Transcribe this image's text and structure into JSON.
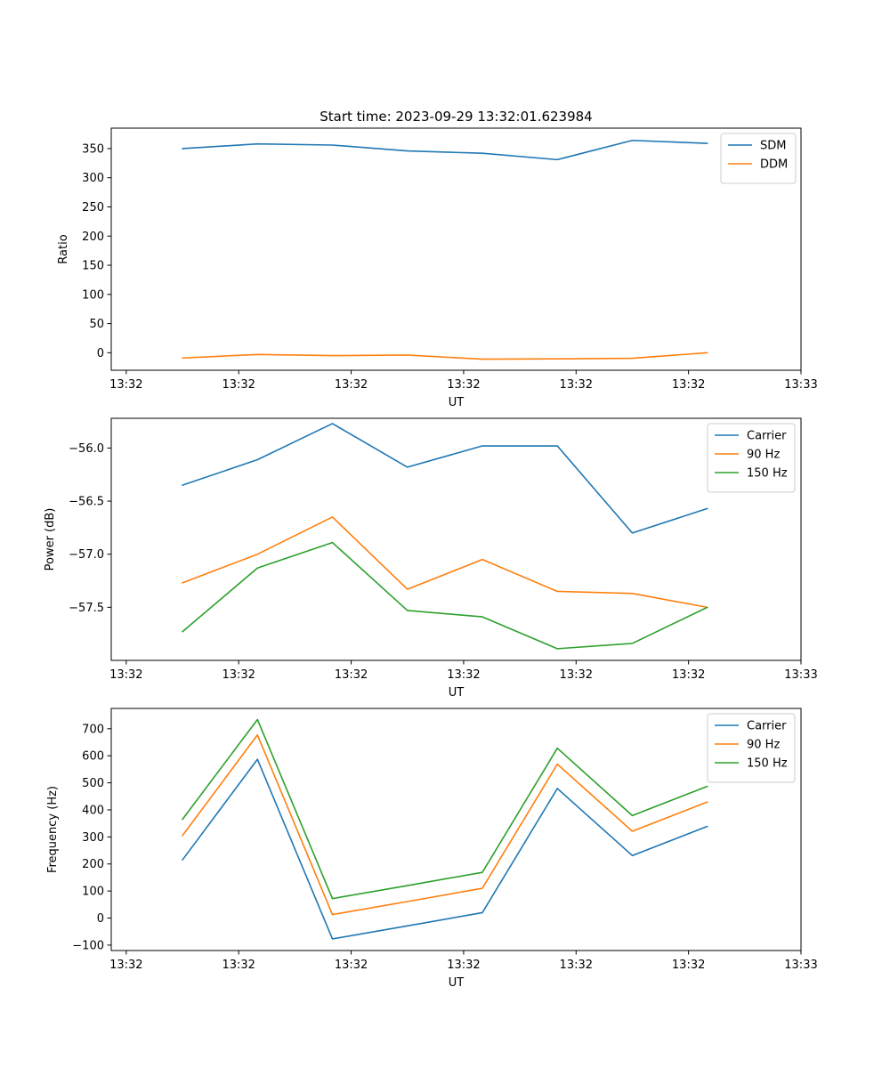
{
  "figure_title": "Start time: 2023-09-29 13:32:01.623984",
  "chart_data": [
    {
      "type": "line",
      "title": "Start time: 2023-09-29 13:32:01.623984",
      "xlabel": "UT",
      "ylabel": "Ratio",
      "xlim": [
        -0.2,
        9.0
      ],
      "ylim": [
        -30,
        385
      ],
      "x": [
        0.75,
        1.75,
        2.75,
        3.75,
        4.75,
        5.75,
        6.75,
        7.75
      ],
      "x_ticks": [
        0,
        1.5,
        3,
        4.5,
        6,
        7.5,
        9
      ],
      "x_tick_labels": [
        "13:32",
        "13:32",
        "13:32",
        "13:32",
        "13:32",
        "13:32",
        "13:33"
      ],
      "y_ticks": [
        0,
        50,
        100,
        150,
        200,
        250,
        300,
        350
      ],
      "y_tick_labels": [
        "0",
        "50",
        "100",
        "150",
        "200",
        "250",
        "300",
        "350"
      ],
      "legend": "top-right",
      "series": [
        {
          "name": "SDM",
          "color": "#1f77b4",
          "values": [
            350,
            358,
            356,
            346,
            342,
            331,
            364,
            359
          ]
        },
        {
          "name": "DDM",
          "color": "#ff7f0e",
          "values": [
            -9,
            -3,
            -5,
            -4,
            -11,
            -10.5,
            -9.5,
            0
          ]
        }
      ]
    },
    {
      "type": "line",
      "title": "",
      "xlabel": "UT",
      "ylabel": "Power (dB)",
      "xlim": [
        -0.2,
        9.0
      ],
      "ylim": [
        -58.0,
        -55.72
      ],
      "x": [
        0.75,
        1.75,
        2.75,
        3.75,
        4.75,
        5.75,
        6.75,
        7.75
      ],
      "x_ticks": [
        0,
        1.5,
        3,
        4.5,
        6,
        7.5,
        9
      ],
      "x_tick_labels": [
        "13:32",
        "13:32",
        "13:32",
        "13:32",
        "13:32",
        "13:32",
        "13:33"
      ],
      "y_ticks": [
        -57.5,
        -57.0,
        -56.5,
        -56.0
      ],
      "y_tick_labels": [
        "−57.5",
        "−57.0",
        "−56.5",
        "−56.0"
      ],
      "legend": "top-right",
      "series": [
        {
          "name": "Carrier",
          "color": "#1f77b4",
          "values": [
            -56.35,
            -56.11,
            -55.77,
            -56.18,
            -55.98,
            -55.98,
            -56.8,
            -56.57
          ]
        },
        {
          "name": "90 Hz",
          "color": "#ff7f0e",
          "values": [
            -57.27,
            -57.0,
            -56.65,
            -57.33,
            -57.05,
            -57.35,
            -57.37,
            -57.5
          ]
        },
        {
          "name": "150 Hz",
          "color": "#2ca02c",
          "values": [
            -57.73,
            -57.13,
            -56.89,
            -57.53,
            -57.59,
            -57.89,
            -57.84,
            -57.5
          ]
        }
      ]
    },
    {
      "type": "line",
      "title": "",
      "xlabel": "UT",
      "ylabel": "Frequency (Hz)",
      "xlim": [
        -0.2,
        9.0
      ],
      "ylim": [
        -120,
        775
      ],
      "x": [
        0.75,
        1.75,
        2.75,
        3.75,
        4.75,
        5.75,
        6.75,
        7.75
      ],
      "x_ticks": [
        0,
        1.5,
        3,
        4.5,
        6,
        7.5,
        9
      ],
      "x_tick_labels": [
        "13:32",
        "13:32",
        "13:32",
        "13:32",
        "13:32",
        "13:32",
        "13:33"
      ],
      "y_ticks": [
        -100,
        0,
        100,
        200,
        300,
        400,
        500,
        600,
        700
      ],
      "y_tick_labels": [
        "−100",
        "0",
        "100",
        "200",
        "300",
        "400",
        "500",
        "600",
        "700"
      ],
      "legend": "top-right",
      "series": [
        {
          "name": "Carrier",
          "color": "#1f77b4",
          "values": [
            215,
            587,
            -77,
            -29,
            20,
            479,
            231,
            339
          ]
        },
        {
          "name": "90 Hz",
          "color": "#ff7f0e",
          "values": [
            305,
            677,
            13,
            61,
            110,
            569,
            321,
            429
          ]
        },
        {
          "name": "150 Hz",
          "color": "#2ca02c",
          "values": [
            365,
            734,
            72,
            120,
            169,
            628,
            379,
            487
          ]
        }
      ]
    }
  ]
}
